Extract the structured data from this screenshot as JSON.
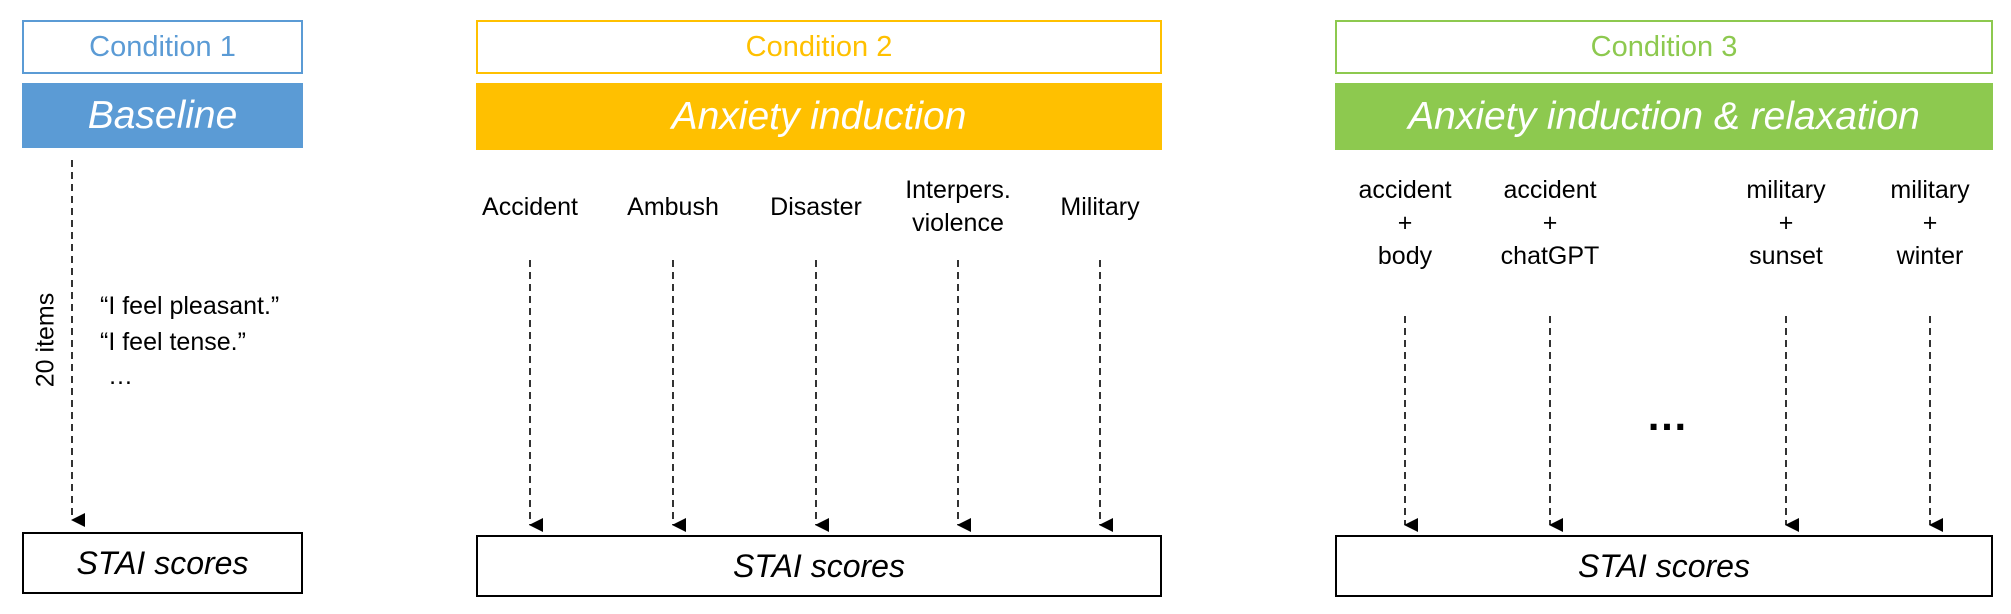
{
  "colors": {
    "condition1": "#5b9bd5",
    "condition2": "#ffc000",
    "condition3": "#8dc94f",
    "arrow": "#000000"
  },
  "condition1": {
    "label": "Condition 1",
    "phase": "Baseline",
    "axis_label": "20 items",
    "items": [
      "“I feel pleasant.”",
      "“I feel tense.”",
      "…"
    ],
    "score": "STAI scores"
  },
  "condition2": {
    "label": "Condition 2",
    "phase": "Anxiety induction",
    "stimuli": [
      {
        "lines": [
          "Accident"
        ]
      },
      {
        "lines": [
          "Ambush"
        ]
      },
      {
        "lines": [
          "Disaster"
        ]
      },
      {
        "lines": [
          "Interpers.",
          "violence"
        ]
      },
      {
        "lines": [
          "Military"
        ]
      }
    ],
    "score": "STAI scores"
  },
  "condition3": {
    "label": "Condition 3",
    "phase": "Anxiety induction & relaxation",
    "stimuli": [
      {
        "lines": [
          "accident",
          "+",
          "body"
        ]
      },
      {
        "lines": [
          "accident",
          "+",
          "chatGPT"
        ]
      },
      {
        "lines": [
          "military",
          "+",
          "sunset"
        ]
      },
      {
        "lines": [
          "military",
          "+",
          "winter"
        ]
      }
    ],
    "ellipsis": "…",
    "score": "STAI scores"
  }
}
